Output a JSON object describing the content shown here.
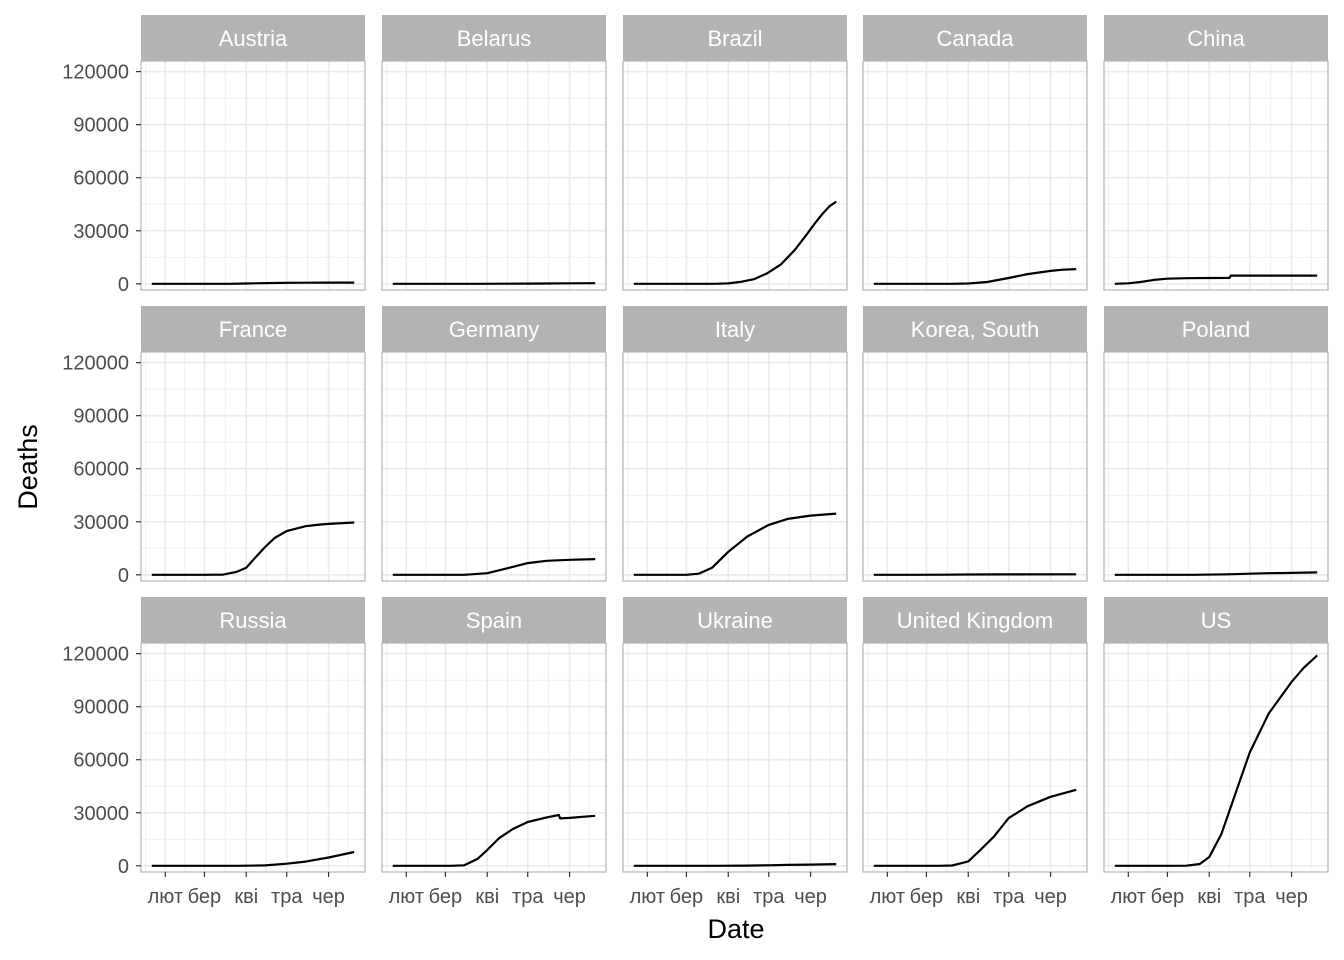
{
  "chart_data": {
    "type": "line",
    "layout": "facet-grid-3x5",
    "xlabel": "Date",
    "ylabel": "Deaths",
    "ylim": [
      -3500,
      126000
    ],
    "yticks": [
      0,
      30000,
      60000,
      90000,
      120000
    ],
    "ytick_labels": [
      "0",
      "30000",
      "60000",
      "90000",
      "120000"
    ],
    "xlim": [
      "2020-01-14",
      "2020-06-28"
    ],
    "xticks": [
      "2020-02-01",
      "2020-03-01",
      "2020-04-01",
      "2020-05-01",
      "2020-06-01"
    ],
    "xtick_labels": [
      "лют",
      "бер",
      "кві",
      "тра",
      "чер"
    ],
    "grid": true,
    "colors": {
      "line": "#000000",
      "strip": "#b3b3b3",
      "grid": "#ebebeb",
      "border": "#b3b3b3"
    },
    "panels": [
      {
        "name": "Austria",
        "points": [
          [
            "2020-01-22",
            0
          ],
          [
            "2020-03-01",
            0
          ],
          [
            "2020-03-20",
            10
          ],
          [
            "2020-04-01",
            150
          ],
          [
            "2020-04-15",
            400
          ],
          [
            "2020-05-01",
            580
          ],
          [
            "2020-05-15",
            630
          ],
          [
            "2020-06-01",
            668
          ],
          [
            "2020-06-15",
            680
          ],
          [
            "2020-06-20",
            688
          ]
        ]
      },
      {
        "name": "Belarus",
        "points": [
          [
            "2020-01-22",
            0
          ],
          [
            "2020-03-25",
            0
          ],
          [
            "2020-04-15",
            40
          ],
          [
            "2020-05-01",
            120
          ],
          [
            "2020-05-15",
            200
          ],
          [
            "2020-06-01",
            290
          ],
          [
            "2020-06-20",
            360
          ]
        ]
      },
      {
        "name": "Brazil",
        "points": [
          [
            "2020-01-22",
            0
          ],
          [
            "2020-03-17",
            0
          ],
          [
            "2020-03-25",
            60
          ],
          [
            "2020-04-01",
            240
          ],
          [
            "2020-04-10",
            1100
          ],
          [
            "2020-04-20",
            2600
          ],
          [
            "2020-04-30",
            6000
          ],
          [
            "2020-05-10",
            11000
          ],
          [
            "2020-05-20",
            18900
          ],
          [
            "2020-05-30",
            28800
          ],
          [
            "2020-06-05",
            35000
          ],
          [
            "2020-06-10",
            39700
          ],
          [
            "2020-06-15",
            43900
          ],
          [
            "2020-06-20",
            46500
          ]
        ]
      },
      {
        "name": "Canada",
        "points": [
          [
            "2020-01-22",
            0
          ],
          [
            "2020-03-20",
            10
          ],
          [
            "2020-04-01",
            200
          ],
          [
            "2020-04-15",
            1000
          ],
          [
            "2020-05-01",
            3300
          ],
          [
            "2020-05-15",
            5500
          ],
          [
            "2020-06-01",
            7300
          ],
          [
            "2020-06-10",
            8000
          ],
          [
            "2020-06-20",
            8300
          ]
        ]
      },
      {
        "name": "China",
        "points": [
          [
            "2020-01-22",
            17
          ],
          [
            "2020-02-01",
            300
          ],
          [
            "2020-02-10",
            1000
          ],
          [
            "2020-02-20",
            2200
          ],
          [
            "2020-03-01",
            2900
          ],
          [
            "2020-03-15",
            3200
          ],
          [
            "2020-04-01",
            3300
          ],
          [
            "2020-04-16",
            3345
          ],
          [
            "2020-04-17",
            4632
          ],
          [
            "2020-05-01",
            4640
          ],
          [
            "2020-06-20",
            4640
          ]
        ]
      },
      {
        "name": "France",
        "points": [
          [
            "2020-01-22",
            0
          ],
          [
            "2020-03-01",
            2
          ],
          [
            "2020-03-15",
            100
          ],
          [
            "2020-03-25",
            1700
          ],
          [
            "2020-04-01",
            4000
          ],
          [
            "2020-04-08",
            10000
          ],
          [
            "2020-04-15",
            15700
          ],
          [
            "2020-04-22",
            20800
          ],
          [
            "2020-05-01",
            24700
          ],
          [
            "2020-05-15",
            27500
          ],
          [
            "2020-05-25",
            28400
          ],
          [
            "2020-06-01",
            28800
          ],
          [
            "2020-06-20",
            29600
          ]
        ]
      },
      {
        "name": "Germany",
        "points": [
          [
            "2020-01-22",
            0
          ],
          [
            "2020-03-15",
            10
          ],
          [
            "2020-04-01",
            900
          ],
          [
            "2020-04-15",
            3500
          ],
          [
            "2020-05-01",
            6600
          ],
          [
            "2020-05-15",
            7900
          ],
          [
            "2020-06-01",
            8500
          ],
          [
            "2020-06-20",
            8900
          ]
        ]
      },
      {
        "name": "Italy",
        "points": [
          [
            "2020-01-22",
            0
          ],
          [
            "2020-02-22",
            1
          ],
          [
            "2020-03-01",
            30
          ],
          [
            "2020-03-10",
            630
          ],
          [
            "2020-03-20",
            4000
          ],
          [
            "2020-04-01",
            13000
          ],
          [
            "2020-04-15",
            21600
          ],
          [
            "2020-05-01",
            28200
          ],
          [
            "2020-05-15",
            31600
          ],
          [
            "2020-06-01",
            33500
          ],
          [
            "2020-06-20",
            34600
          ]
        ]
      },
      {
        "name": "Korea, South",
        "points": [
          [
            "2020-01-22",
            0
          ],
          [
            "2020-02-20",
            1
          ],
          [
            "2020-03-15",
            75
          ],
          [
            "2020-04-01",
            165
          ],
          [
            "2020-05-01",
            250
          ],
          [
            "2020-06-20",
            280
          ]
        ]
      },
      {
        "name": "Poland",
        "points": [
          [
            "2020-01-22",
            0
          ],
          [
            "2020-03-20",
            5
          ],
          [
            "2020-04-15",
            300
          ],
          [
            "2020-05-01",
            650
          ],
          [
            "2020-05-15",
            900
          ],
          [
            "2020-06-01",
            1100
          ],
          [
            "2020-06-20",
            1350
          ]
        ]
      },
      {
        "name": "Russia",
        "points": [
          [
            "2020-01-22",
            0
          ],
          [
            "2020-03-25",
            0
          ],
          [
            "2020-04-15",
            230
          ],
          [
            "2020-05-01",
            1200
          ],
          [
            "2020-05-15",
            2400
          ],
          [
            "2020-06-01",
            4700
          ],
          [
            "2020-06-20",
            7800
          ]
        ]
      },
      {
        "name": "Spain",
        "points": [
          [
            "2020-01-22",
            0
          ],
          [
            "2020-03-05",
            3
          ],
          [
            "2020-03-15",
            300
          ],
          [
            "2020-03-25",
            4000
          ],
          [
            "2020-04-01",
            9000
          ],
          [
            "2020-04-10",
            15800
          ],
          [
            "2020-04-20",
            20800
          ],
          [
            "2020-05-01",
            24800
          ],
          [
            "2020-05-15",
            27400
          ],
          [
            "2020-05-24",
            28750
          ],
          [
            "2020-05-25",
            26800
          ],
          [
            "2020-06-01",
            27100
          ],
          [
            "2020-06-20",
            28300
          ]
        ]
      },
      {
        "name": "Ukraine",
        "points": [
          [
            "2020-01-22",
            0
          ],
          [
            "2020-03-20",
            2
          ],
          [
            "2020-04-15",
            100
          ],
          [
            "2020-05-01",
            300
          ],
          [
            "2020-05-15",
            500
          ],
          [
            "2020-06-01",
            700
          ],
          [
            "2020-06-20",
            950
          ]
        ]
      },
      {
        "name": "United Kingdom",
        "points": [
          [
            "2020-01-22",
            0
          ],
          [
            "2020-03-10",
            6
          ],
          [
            "2020-03-20",
            200
          ],
          [
            "2020-04-01",
            2500
          ],
          [
            "2020-04-10",
            9000
          ],
          [
            "2020-04-20",
            16500
          ],
          [
            "2020-05-01",
            27000
          ],
          [
            "2020-05-15",
            33700
          ],
          [
            "2020-06-01",
            39000
          ],
          [
            "2020-06-20",
            43000
          ]
        ]
      },
      {
        "name": "US",
        "points": [
          [
            "2020-01-22",
            0
          ],
          [
            "2020-03-01",
            1
          ],
          [
            "2020-03-15",
            60
          ],
          [
            "2020-03-25",
            1000
          ],
          [
            "2020-04-01",
            5000
          ],
          [
            "2020-04-10",
            18000
          ],
          [
            "2020-04-20",
            40000
          ],
          [
            "2020-05-01",
            64000
          ],
          [
            "2020-05-15",
            86000
          ],
          [
            "2020-06-01",
            104000
          ],
          [
            "2020-06-10",
            112000
          ],
          [
            "2020-06-20",
            119000
          ]
        ]
      }
    ]
  }
}
